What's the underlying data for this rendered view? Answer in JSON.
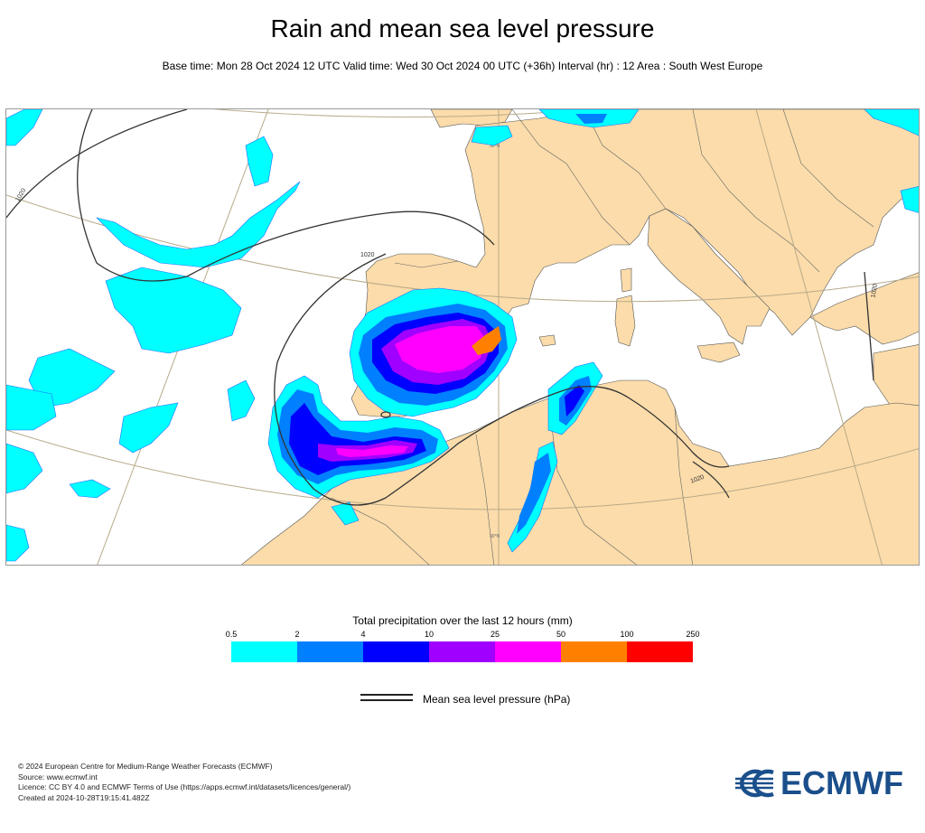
{
  "title": "Rain and mean sea level pressure",
  "subtitle": "Base time: Mon 28 Oct 2024 12 UTC Valid time: Wed 30 Oct 2024 00 UTC (+36h) Interval (hr) : 12 Area : South West Europe",
  "map": {
    "land_color": "#fbdcaa",
    "sea_color": "#ffffff",
    "isobar_labels": [
      "1020",
      "1020",
      "1020",
      "1020"
    ],
    "graticule_labels": [
      "30°N",
      "30°N"
    ]
  },
  "legend": {
    "title": "Total precipitation over the last 12 hours (mm)",
    "ticks": [
      "0.5",
      "2",
      "4",
      "10",
      "25",
      "50",
      "100",
      "250"
    ],
    "colors": [
      "#00ffff",
      "#0080ff",
      "#0000ff",
      "#a000ff",
      "#ff00ff",
      "#ff8000",
      "#ff0000"
    ]
  },
  "pressure_legend": {
    "label": "Mean sea level pressure (hPa)"
  },
  "footer": {
    "lines": [
      "© 2024 European Centre for Medium-Range Weather Forecasts (ECMWF)",
      "Source: www.ecmwf.int",
      "Licence: CC BY 4.0 and ECMWF Terms of Use (https://apps.ecmwf.int/datasets/licences/general/)",
      "Created at 2024-10-28T19:15:41.482Z"
    ]
  },
  "logo": {
    "text": "ECMWF"
  }
}
